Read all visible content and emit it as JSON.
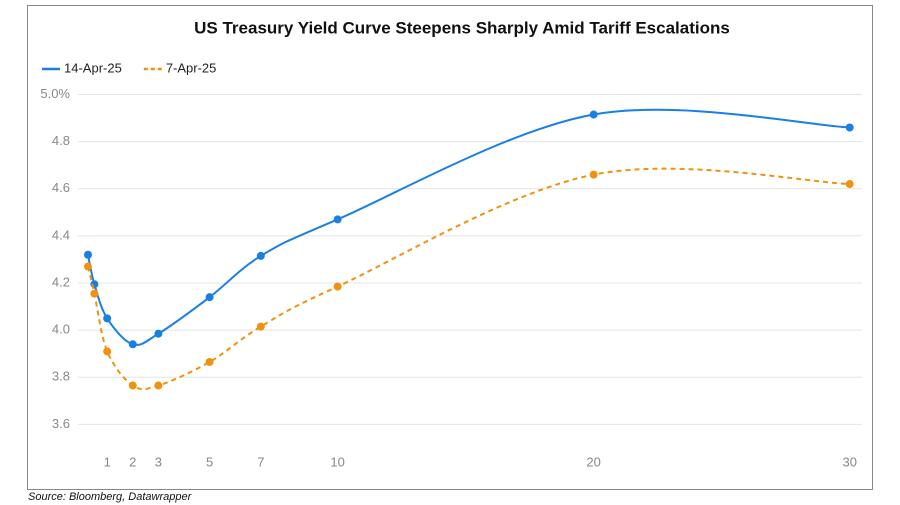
{
  "chart_data": {
    "type": "line",
    "title": "US Treasury Yield Curve Steepens Sharply Amid Tariff Escalations",
    "source": "Source: Bloomberg, Datawrapper",
    "x": [
      0.25,
      0.5,
      1,
      2,
      3,
      5,
      7,
      10,
      20,
      30
    ],
    "series": [
      {
        "name": "14-Apr-25",
        "color": "#1a7fe3",
        "dash": false,
        "values": [
          4.32,
          4.195,
          4.05,
          3.94,
          3.985,
          4.14,
          4.315,
          4.47,
          4.915,
          4.86
        ]
      },
      {
        "name": "7-Apr-25",
        "color": "#f0920f",
        "dash": true,
        "values": [
          4.27,
          4.155,
          3.91,
          3.765,
          3.765,
          3.865,
          4.015,
          4.185,
          4.66,
          4.62
        ]
      }
    ],
    "xlim": [
      -0.14,
      30.48
    ],
    "xticks": [
      1,
      2,
      3,
      5,
      7,
      10,
      20,
      30
    ],
    "ylim": [
      3.5,
      5.0
    ],
    "yticks": [
      {
        "value": 3.6,
        "label": "3.6"
      },
      {
        "value": 3.8,
        "label": "3.8"
      },
      {
        "value": 4.0,
        "label": "4.0"
      },
      {
        "value": 4.2,
        "label": "4.2"
      },
      {
        "value": 4.4,
        "label": "4.4"
      },
      {
        "value": 4.6,
        "label": "4.6"
      },
      {
        "value": 4.8,
        "label": "4.8"
      },
      {
        "value": 5.0,
        "label": "5.0%"
      }
    ],
    "grid": true
  }
}
